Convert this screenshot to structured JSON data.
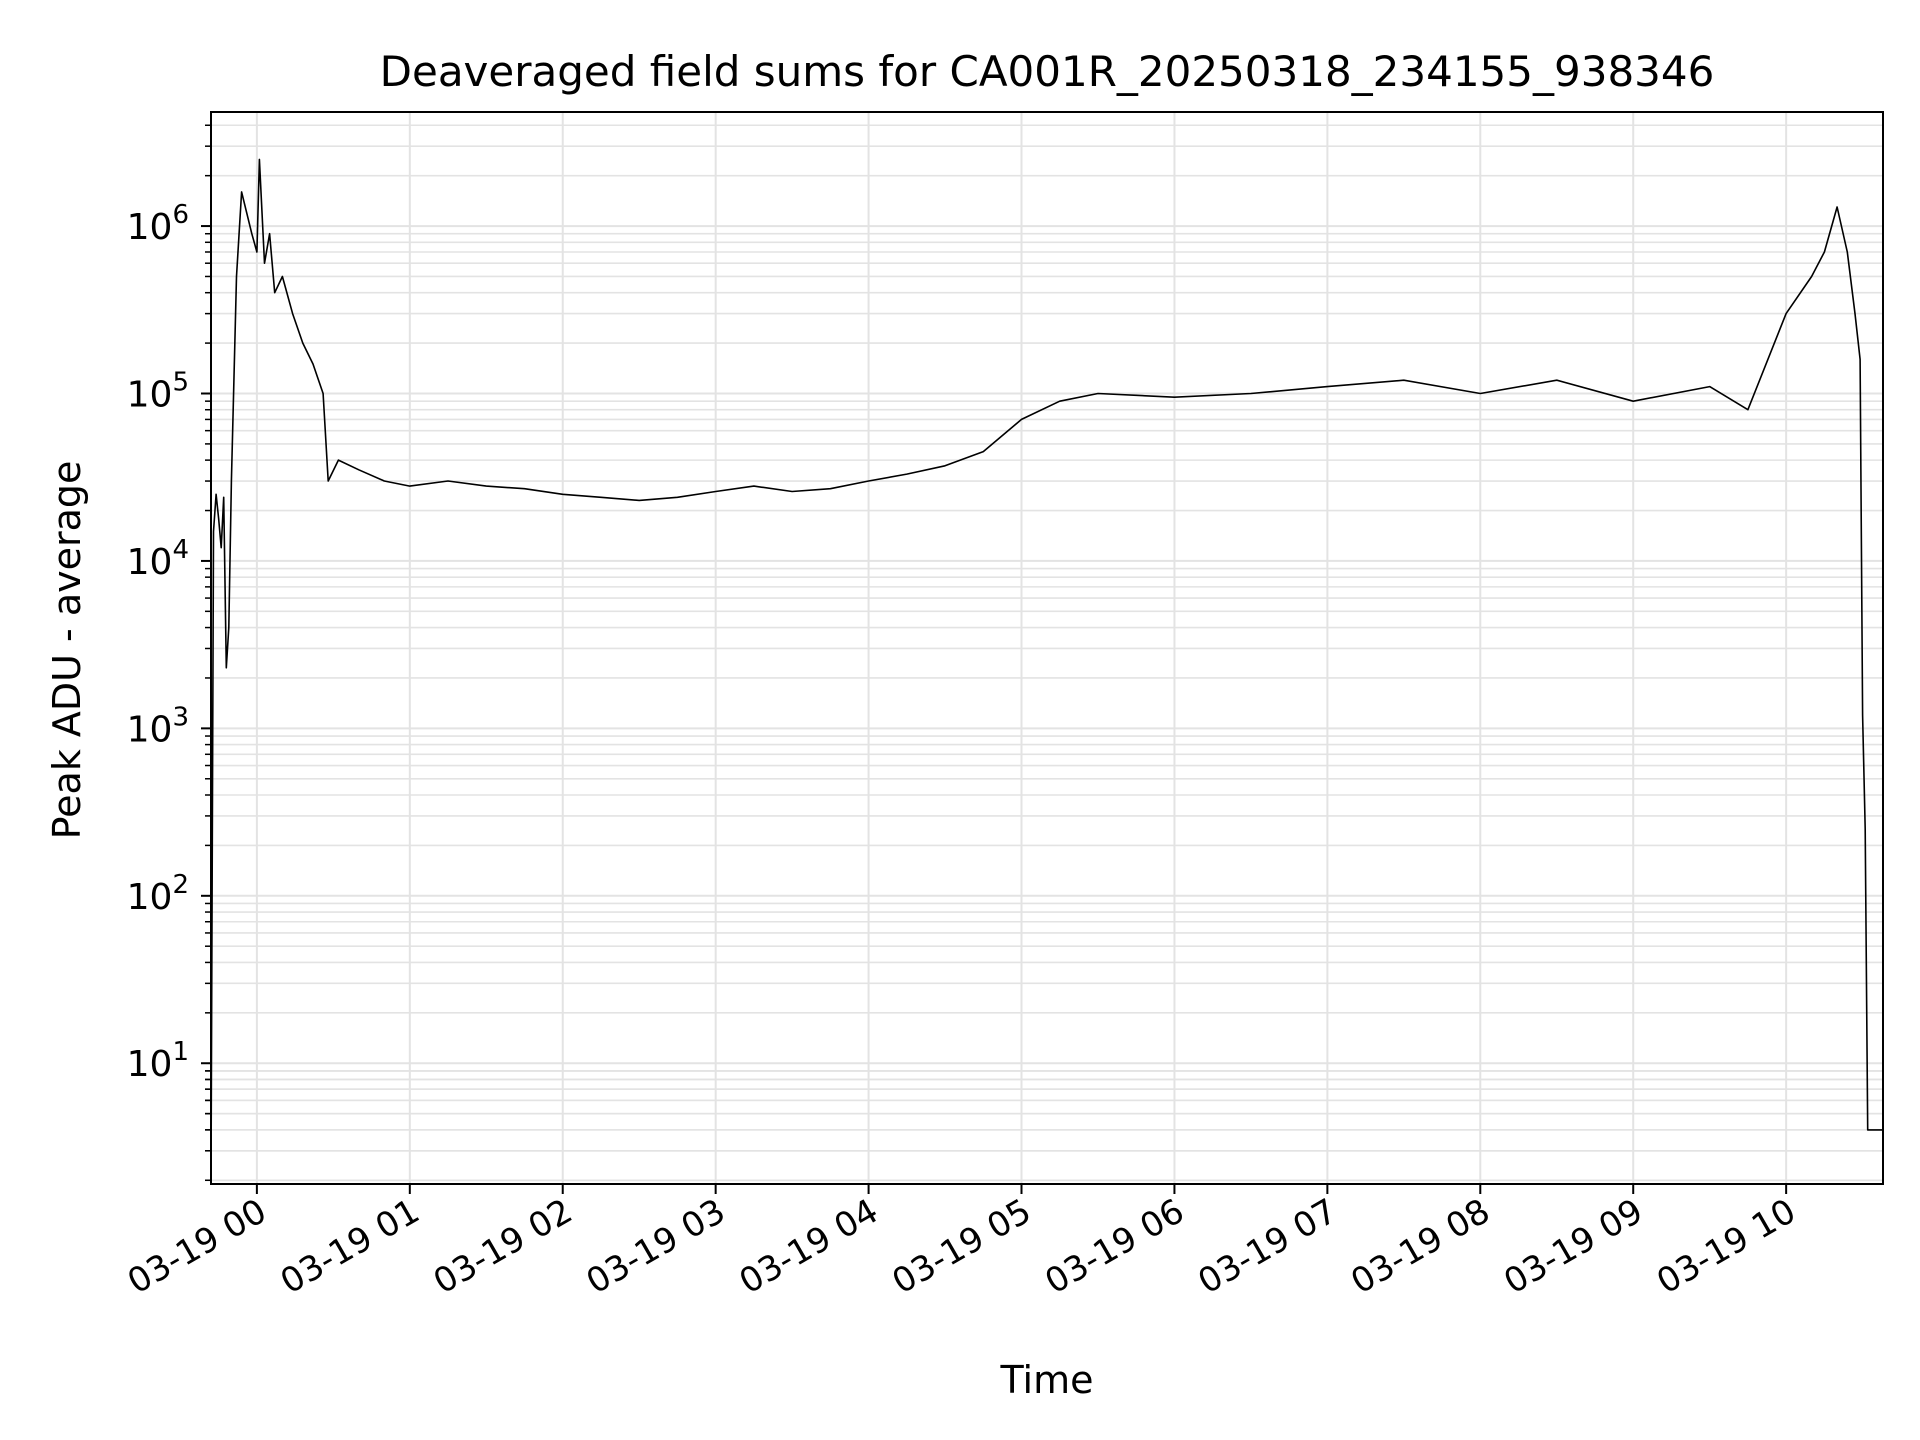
{
  "chart_data": {
    "type": "line",
    "title": "Deaveraged field sums for CA001R_20250318_234155_938346",
    "xlabel": "Time",
    "ylabel": "Peak ADU - average",
    "yscale": "log",
    "xlim": [
      "2025-03-18T23:42:00",
      "2025-03-19T10:38:00"
    ],
    "ylim": [
      1.9,
      4800000
    ],
    "grid": true,
    "grid_minor": true,
    "line_color": "#000000",
    "grid_color": "#e3e3e3",
    "x_ticks": [
      {
        "t": "2025-03-19T00:00:00",
        "label": "03-19 00"
      },
      {
        "t": "2025-03-19T01:00:00",
        "label": "03-19 01"
      },
      {
        "t": "2025-03-19T02:00:00",
        "label": "03-19 02"
      },
      {
        "t": "2025-03-19T03:00:00",
        "label": "03-19 03"
      },
      {
        "t": "2025-03-19T04:00:00",
        "label": "03-19 04"
      },
      {
        "t": "2025-03-19T05:00:00",
        "label": "03-19 05"
      },
      {
        "t": "2025-03-19T06:00:00",
        "label": "03-19 06"
      },
      {
        "t": "2025-03-19T07:00:00",
        "label": "03-19 07"
      },
      {
        "t": "2025-03-19T08:00:00",
        "label": "03-19 08"
      },
      {
        "t": "2025-03-19T09:00:00",
        "label": "03-19 09"
      },
      {
        "t": "2025-03-19T10:00:00",
        "label": "03-19 10"
      }
    ],
    "y_ticks": [
      {
        "value": 10,
        "base": "10",
        "exp": "1"
      },
      {
        "value": 100,
        "base": "10",
        "exp": "2"
      },
      {
        "value": 1000,
        "base": "10",
        "exp": "3"
      },
      {
        "value": 10000,
        "base": "10",
        "exp": "4"
      },
      {
        "value": 100000,
        "base": "10",
        "exp": "5"
      },
      {
        "value": 1000000,
        "base": "10",
        "exp": "6"
      }
    ],
    "series": [
      {
        "x": [
          "2025-03-18T23:42:00",
          "2025-03-18T23:43:00",
          "2025-03-18T23:44:00",
          "2025-03-18T23:45:00",
          "2025-03-18T23:46:00",
          "2025-03-18T23:47:00",
          "2025-03-18T23:48:00",
          "2025-03-18T23:49:00",
          "2025-03-18T23:50:00",
          "2025-03-18T23:52:00",
          "2025-03-18T23:54:00",
          "2025-03-18T23:56:00",
          "2025-03-18T23:58:00",
          "2025-03-19T00:00:00",
          "2025-03-19T00:01:00",
          "2025-03-19T00:03:00",
          "2025-03-19T00:05:00",
          "2025-03-19T00:07:00",
          "2025-03-19T00:10:00",
          "2025-03-19T00:14:00",
          "2025-03-19T00:18:00",
          "2025-03-19T00:22:00",
          "2025-03-19T00:26:00",
          "2025-03-19T00:28:00",
          "2025-03-19T00:32:00",
          "2025-03-19T00:40:00",
          "2025-03-19T00:50:00",
          "2025-03-19T01:00:00",
          "2025-03-19T01:15:00",
          "2025-03-19T01:30:00",
          "2025-03-19T01:45:00",
          "2025-03-19T02:00:00",
          "2025-03-19T02:15:00",
          "2025-03-19T02:30:00",
          "2025-03-19T02:45:00",
          "2025-03-19T03:00:00",
          "2025-03-19T03:15:00",
          "2025-03-19T03:30:00",
          "2025-03-19T03:45:00",
          "2025-03-19T04:00:00",
          "2025-03-19T04:15:00",
          "2025-03-19T04:30:00",
          "2025-03-19T04:45:00",
          "2025-03-19T05:00:00",
          "2025-03-19T05:15:00",
          "2025-03-19T05:30:00",
          "2025-03-19T06:00:00",
          "2025-03-19T06:30:00",
          "2025-03-19T07:00:00",
          "2025-03-19T07:30:00",
          "2025-03-19T08:00:00",
          "2025-03-19T08:30:00",
          "2025-03-19T09:00:00",
          "2025-03-19T09:30:00",
          "2025-03-19T09:45:00",
          "2025-03-19T10:00:00",
          "2025-03-19T10:10:00",
          "2025-03-19T10:15:00",
          "2025-03-19T10:20:00",
          "2025-03-19T10:24:00",
          "2025-03-19T10:27:00",
          "2025-03-19T10:29:00",
          "2025-03-19T10:30:00",
          "2025-03-19T10:31:00",
          "2025-03-19T10:32:00",
          "2025-03-19T10:33:00",
          "2025-03-19T10:38:00"
        ],
        "y": [
          2,
          15000,
          25000,
          18000,
          12000,
          24000,
          2300,
          4000,
          30000,
          500000,
          1600000,
          1200000,
          900000,
          700000,
          2500000,
          600000,
          900000,
          400000,
          500000,
          300000,
          200000,
          150000,
          100000,
          30000,
          40000,
          35000,
          30000,
          28000,
          30000,
          28000,
          27000,
          25000,
          24000,
          23000,
          24000,
          26000,
          28000,
          26000,
          27000,
          30000,
          33000,
          37000,
          45000,
          70000,
          90000,
          100000,
          95000,
          100000,
          110000,
          120000,
          100000,
          120000,
          90000,
          110000,
          80000,
          300000,
          500000,
          700000,
          1300000,
          700000,
          300000,
          160000,
          1200,
          250,
          4,
          4,
          4
        ]
      }
    ]
  }
}
